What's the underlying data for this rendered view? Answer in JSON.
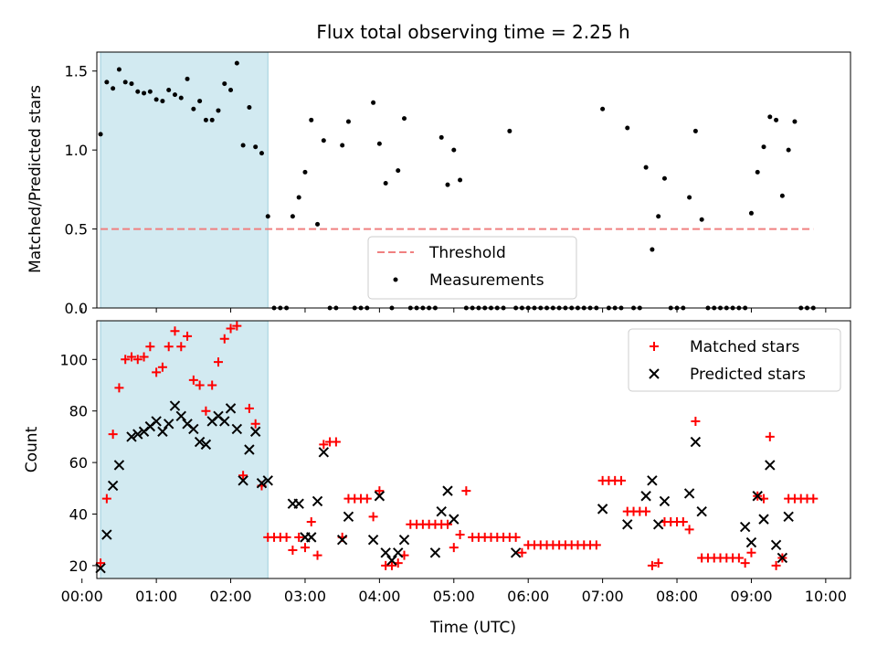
{
  "chart_data": {
    "type": "scatter",
    "title": "Flux total observing time = 2.25 h",
    "xlabel": "Time (UTC)",
    "xlim": [
      "00:12",
      "10:20"
    ],
    "xticks": [
      "00:00",
      "01:00",
      "02:00",
      "03:00",
      "04:00",
      "05:00",
      "06:00",
      "07:00",
      "08:00",
      "09:00",
      "10:00"
    ],
    "highlight_span": {
      "start": "00:15",
      "end": "02:30",
      "color": "#add8e6"
    },
    "panels": [
      {
        "ylabel": "Matched/Predicted stars",
        "ylim": [
          0,
          1.62
        ],
        "yticks": [
          "0.0",
          "0.5",
          "1.0",
          "1.5"
        ],
        "legend_position": "lower center",
        "series": [
          {
            "name": "Threshold",
            "style": "dashed-line",
            "color": "#f08080",
            "x": [
              "00:15",
              "09:50"
            ],
            "y": [
              0.5,
              0.5
            ]
          },
          {
            "name": "Measurements",
            "style": "dot",
            "color": "#000000",
            "x": [
              "00:15",
              "00:20",
              "00:25",
              "00:30",
              "00:35",
              "00:40",
              "00:45",
              "00:50",
              "00:55",
              "01:00",
              "01:05",
              "01:10",
              "01:15",
              "01:20",
              "01:25",
              "01:30",
              "01:35",
              "01:40",
              "01:45",
              "01:50",
              "01:55",
              "02:00",
              "02:05",
              "02:10",
              "02:15",
              "02:20",
              "02:25",
              "02:30",
              "02:35",
              "02:40",
              "02:45",
              "02:50",
              "02:55",
              "03:00",
              "03:05",
              "03:10",
              "03:15",
              "03:20",
              "03:25",
              "03:30",
              "03:35",
              "03:40",
              "03:45",
              "03:50",
              "03:55",
              "04:00",
              "04:05",
              "04:10",
              "04:15",
              "04:20",
              "04:25",
              "04:30",
              "04:35",
              "04:40",
              "04:45",
              "04:50",
              "04:55",
              "05:00",
              "05:05",
              "05:10",
              "05:15",
              "05:20",
              "05:25",
              "05:30",
              "05:35",
              "05:40",
              "05:45",
              "05:50",
              "05:55",
              "06:00",
              "06:05",
              "06:10",
              "06:15",
              "06:20",
              "06:25",
              "06:30",
              "06:35",
              "06:40",
              "06:45",
              "06:50",
              "06:55",
              "07:00",
              "07:05",
              "07:10",
              "07:15",
              "07:20",
              "07:25",
              "07:30",
              "07:35",
              "07:40",
              "07:45",
              "07:50",
              "07:55",
              "08:00",
              "08:05",
              "08:10",
              "08:15",
              "08:20",
              "08:25",
              "08:30",
              "08:35",
              "08:40",
              "08:45",
              "08:50",
              "08:55",
              "09:00",
              "09:05",
              "09:10",
              "09:15",
              "09:20",
              "09:25",
              "09:30",
              "09:35",
              "09:40",
              "09:45",
              "09:50"
            ],
            "y": [
              1.1,
              1.43,
              1.39,
              1.51,
              1.43,
              1.42,
              1.37,
              1.36,
              1.37,
              1.32,
              1.31,
              1.38,
              1.35,
              1.33,
              1.45,
              1.26,
              1.31,
              1.19,
              1.19,
              1.25,
              1.42,
              1.38,
              1.55,
              1.03,
              1.27,
              1.02,
              0.98,
              0.58,
              0,
              0,
              0,
              0.58,
              0.7,
              0.86,
              1.19,
              0.53,
              1.06,
              0,
              0,
              1.03,
              1.18,
              0,
              0,
              0,
              1.3,
              1.04,
              0.79,
              0,
              0.87,
              1.2,
              0,
              0,
              0,
              0,
              0,
              1.08,
              0.78,
              1.0,
              0.81,
              0,
              0,
              0,
              0,
              0,
              0,
              0,
              1.12,
              0,
              0,
              0,
              0,
              0,
              0,
              0,
              0,
              0,
              0,
              0,
              0,
              0,
              0,
              1.26,
              0,
              0,
              0,
              1.14,
              0,
              0,
              0.89,
              0.37,
              0.58,
              0.82,
              0,
              0,
              0,
              0.7,
              1.12,
              0.56,
              0,
              0,
              0,
              0,
              0,
              0,
              0,
              0.6,
              0.86,
              1.02,
              1.21,
              1.19,
              0.71,
              1.0,
              1.18,
              0,
              0,
              0
            ]
          }
        ]
      },
      {
        "ylabel": "Count",
        "ylim": [
          15,
          115
        ],
        "yticks": [
          "20",
          "40",
          "60",
          "80",
          "100"
        ],
        "legend_position": "upper right",
        "series": [
          {
            "name": "Matched stars",
            "style": "plus",
            "color": "#ff0000",
            "x": [
              "00:15",
              "00:20",
              "00:25",
              "00:30",
              "00:35",
              "00:40",
              "00:45",
              "00:50",
              "00:55",
              "01:00",
              "01:05",
              "01:10",
              "01:15",
              "01:20",
              "01:25",
              "01:30",
              "01:35",
              "01:40",
              "01:45",
              "01:50",
              "01:55",
              "02:00",
              "02:05",
              "02:10",
              "02:15",
              "02:20",
              "02:25",
              "02:30",
              "02:35",
              "02:40",
              "02:45",
              "02:50",
              "02:55",
              "03:00",
              "03:05",
              "03:10",
              "03:15",
              "03:20",
              "03:25",
              "03:30",
              "03:35",
              "03:40",
              "03:45",
              "03:50",
              "03:55",
              "04:00",
              "04:05",
              "04:10",
              "04:15",
              "04:20",
              "04:25",
              "04:30",
              "04:35",
              "04:40",
              "04:45",
              "04:50",
              "04:55",
              "05:00",
              "05:05",
              "05:10",
              "05:15",
              "05:20",
              "05:25",
              "05:30",
              "05:35",
              "05:40",
              "05:45",
              "05:50",
              "05:55",
              "06:00",
              "06:05",
              "06:10",
              "06:15",
              "06:20",
              "06:25",
              "06:30",
              "06:35",
              "06:40",
              "06:45",
              "06:50",
              "06:55",
              "07:00",
              "07:05",
              "07:10",
              "07:15",
              "07:20",
              "07:25",
              "07:30",
              "07:35",
              "07:40",
              "07:45",
              "07:50",
              "07:55",
              "08:00",
              "08:05",
              "08:10",
              "08:15",
              "08:20",
              "08:25",
              "08:30",
              "08:35",
              "08:40",
              "08:45",
              "08:50",
              "08:55",
              "09:00",
              "09:05",
              "09:10",
              "09:15",
              "09:20",
              "09:25",
              "09:30",
              "09:35",
              "09:40",
              "09:45",
              "09:50"
            ],
            "y": [
              21,
              46,
              71,
              89,
              100,
              101,
              100,
              101,
              105,
              95,
              97,
              105,
              111,
              105,
              109,
              92,
              90,
              80,
              90,
              99,
              108,
              112,
              113,
              55,
              81,
              75,
              51,
              31,
              31,
              31,
              31,
              26,
              31,
              27,
              37,
              24,
              67,
              68,
              68,
              31,
              46,
              46,
              46,
              46,
              39,
              49,
              20,
              20,
              21,
              24,
              36,
              36,
              36,
              36,
              36,
              36,
              36,
              27,
              32,
              49,
              31,
              31,
              31,
              31,
              31,
              31,
              31,
              31,
              25,
              28,
              28,
              28,
              28,
              28,
              28,
              28,
              28,
              28,
              28,
              28,
              28,
              53,
              53,
              53,
              53,
              41,
              41,
              41,
              41,
              20,
              21,
              37,
              37,
              37,
              37,
              34,
              76,
              23,
              23,
              23,
              23,
              23,
              23,
              23,
              21,
              25,
              47,
              46,
              70,
              20,
              23,
              46,
              46,
              46,
              46,
              46
            ]
          },
          {
            "name": "Predicted stars",
            "style": "x",
            "color": "#000000",
            "x": [
              "00:15",
              "00:20",
              "00:25",
              "00:30",
              "00:40",
              "00:45",
              "00:50",
              "00:55",
              "01:00",
              "01:05",
              "01:10",
              "01:15",
              "01:20",
              "01:25",
              "01:30",
              "01:35",
              "01:40",
              "01:45",
              "01:50",
              "01:55",
              "02:00",
              "02:05",
              "02:10",
              "02:15",
              "02:20",
              "02:25",
              "02:30",
              "02:50",
              "02:55",
              "03:00",
              "03:05",
              "03:10",
              "03:15",
              "03:30",
              "03:35",
              "03:55",
              "04:00",
              "04:05",
              "04:10",
              "04:15",
              "04:20",
              "04:45",
              "04:50",
              "04:55",
              "05:00",
              "05:50",
              "07:00",
              "07:20",
              "07:35",
              "07:40",
              "07:45",
              "07:50",
              "08:10",
              "08:15",
              "08:20",
              "08:55",
              "09:00",
              "09:05",
              "09:10",
              "09:15",
              "09:20",
              "09:25",
              "09:30"
            ],
            "y": [
              19,
              32,
              51,
              59,
              70,
              71,
              72,
              74,
              76,
              72,
              75,
              82,
              78,
              75,
              73,
              68,
              67,
              76,
              78,
              76,
              81,
              73,
              53,
              65,
              72,
              52,
              53,
              44,
              44,
              31,
              31,
              45,
              64,
              30,
              39,
              30,
              47,
              25,
              22,
              25,
              30,
              25,
              41,
              49,
              38,
              25,
              42,
              36,
              47,
              53,
              36,
              45,
              48,
              68,
              41,
              35,
              29,
              47,
              38,
              59,
              28,
              23,
              39
            ]
          }
        ]
      }
    ]
  }
}
